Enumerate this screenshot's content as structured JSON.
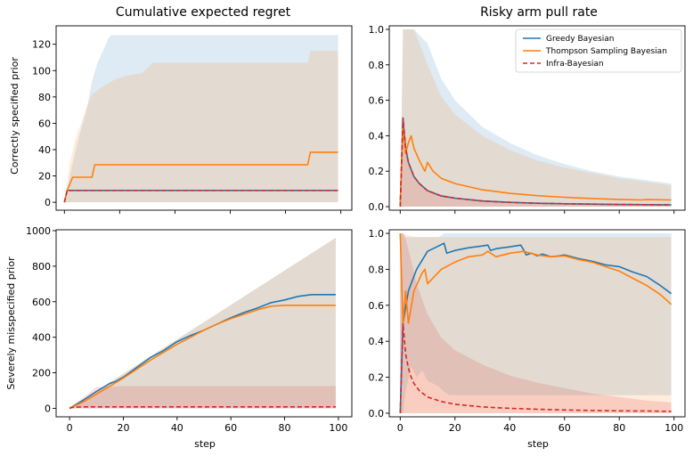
{
  "figure": {
    "col_titles": [
      "Cumulative expected regret",
      "Risky arm pull rate"
    ],
    "row_labels": [
      "Correctly specified prior",
      "Severely misspecified prior"
    ],
    "xlabel": "step"
  },
  "legend": {
    "placement": "top-right",
    "entries": [
      {
        "label": "Greedy Bayesian",
        "color": "#1f77b4",
        "style": "solid"
      },
      {
        "label": "Thompson Sampling Bayesian",
        "color": "#ff7f0e",
        "style": "solid"
      },
      {
        "label": "Infra-Bayesian",
        "color": "#d62728",
        "style": "dashed"
      }
    ]
  },
  "colors": {
    "greedy": "#1f77b4",
    "thompson": "#ff7f0e",
    "infra": "#d62728"
  },
  "chart_data": [
    {
      "type": "line",
      "panel": "top-left",
      "xlim": [
        -3,
        104
      ],
      "ylim": [
        -6,
        134
      ],
      "xticks": [
        0,
        20,
        40,
        60,
        80,
        100
      ],
      "yticks": [
        0,
        20,
        40,
        60,
        80,
        100,
        120
      ],
      "show_xtick_labels": false,
      "bands": [
        {
          "series": "greedy",
          "x": [
            0,
            3,
            5,
            8,
            10,
            12,
            14,
            16,
            17,
            99
          ],
          "lower": [
            0,
            0,
            0,
            0,
            0,
            0,
            0,
            0,
            0,
            0
          ],
          "upper": [
            0,
            30,
            48,
            70,
            92,
            106,
            115,
            125,
            127,
            127
          ]
        },
        {
          "series": "thompson",
          "x": [
            0,
            2,
            4,
            8,
            10,
            14,
            18,
            22,
            28,
            32,
            40,
            50,
            60,
            70,
            80,
            88,
            89,
            99
          ],
          "lower": [
            0,
            0,
            0,
            0,
            0,
            0,
            0,
            0,
            0,
            0,
            0,
            0,
            0,
            0,
            0,
            0,
            0,
            0
          ],
          "upper": [
            0,
            30,
            48,
            72,
            82,
            88,
            93,
            96,
            98,
            106,
            106,
            106,
            106,
            106,
            106,
            106,
            115,
            115
          ]
        },
        {
          "series": "infra",
          "x": [
            0,
            99
          ],
          "lower": [
            9,
            9
          ],
          "upper": [
            9,
            9
          ]
        }
      ],
      "series": [
        {
          "key": "greedy",
          "x": [
            0,
            1,
            99
          ],
          "values": [
            0,
            9,
            9
          ]
        },
        {
          "key": "thompson",
          "x": [
            0,
            1,
            3,
            10,
            11,
            88,
            89,
            99
          ],
          "values": [
            0,
            9,
            19,
            19,
            28.5,
            28.5,
            38,
            38
          ]
        },
        {
          "key": "infra",
          "x": [
            0,
            1,
            99
          ],
          "values": [
            0,
            9,
            9
          ]
        }
      ]
    },
    {
      "type": "line",
      "panel": "top-right",
      "xlim": [
        -4,
        104
      ],
      "ylim": [
        -0.02,
        1.02
      ],
      "xticks": [
        0,
        20,
        40,
        60,
        80,
        100
      ],
      "yticks": [
        0.0,
        0.2,
        0.4,
        0.6,
        0.8,
        1.0
      ],
      "show_xtick_labels": false,
      "bands": [
        {
          "series": "greedy",
          "x": [
            0,
            1,
            2,
            5,
            10,
            15,
            20,
            30,
            40,
            50,
            60,
            70,
            80,
            90,
            99
          ],
          "lower": [
            0,
            0,
            0,
            0,
            0,
            0,
            0,
            0,
            0,
            0,
            0,
            0,
            0,
            0,
            0
          ],
          "upper": [
            0,
            1.0,
            1.0,
            1.0,
            0.92,
            0.72,
            0.6,
            0.45,
            0.36,
            0.29,
            0.24,
            0.2,
            0.17,
            0.15,
            0.13
          ]
        },
        {
          "series": "thompson",
          "x": [
            0,
            1,
            5,
            10,
            15,
            20,
            30,
            40,
            50,
            60,
            70,
            80,
            90,
            99
          ],
          "lower": [
            0,
            0,
            0,
            0,
            0,
            0,
            0,
            0,
            0,
            0,
            0,
            0,
            0,
            0
          ],
          "upper": [
            0,
            1.0,
            1.0,
            0.8,
            0.62,
            0.52,
            0.4,
            0.32,
            0.26,
            0.22,
            0.19,
            0.16,
            0.14,
            0.12
          ]
        },
        {
          "series": "infra",
          "x": [
            0,
            1,
            2,
            5,
            10,
            20,
            40,
            99
          ],
          "lower": [
            0,
            0,
            0,
            0,
            0,
            0,
            0,
            0
          ],
          "upper": [
            0,
            0.5,
            0.32,
            0.16,
            0.09,
            0.05,
            0.025,
            0.012
          ]
        }
      ],
      "series": [
        {
          "key": "greedy",
          "x": [
            0,
            1,
            2,
            3,
            5,
            7,
            10,
            15,
            20,
            30,
            40,
            50,
            60,
            70,
            80,
            90,
            99
          ],
          "values": [
            0,
            0.5,
            0.33,
            0.25,
            0.17,
            0.13,
            0.09,
            0.06,
            0.048,
            0.032,
            0.024,
            0.019,
            0.016,
            0.014,
            0.012,
            0.011,
            0.01
          ]
        },
        {
          "key": "thompson",
          "x": [
            0,
            1,
            2,
            3,
            4,
            5,
            7,
            9,
            10,
            12,
            15,
            20,
            30,
            40,
            50,
            60,
            70,
            80,
            88,
            90,
            99
          ],
          "values": [
            0,
            0.45,
            0.3,
            0.36,
            0.4,
            0.33,
            0.26,
            0.2,
            0.25,
            0.2,
            0.16,
            0.13,
            0.095,
            0.075,
            0.062,
            0.053,
            0.046,
            0.041,
            0.038,
            0.04,
            0.038
          ]
        },
        {
          "key": "infra",
          "x": [
            0,
            1,
            2,
            3,
            5,
            7,
            10,
            15,
            20,
            30,
            40,
            50,
            60,
            70,
            80,
            90,
            99
          ],
          "values": [
            0,
            0.5,
            0.33,
            0.25,
            0.17,
            0.13,
            0.09,
            0.06,
            0.048,
            0.032,
            0.024,
            0.019,
            0.016,
            0.014,
            0.012,
            0.011,
            0.01
          ]
        }
      ]
    },
    {
      "type": "line",
      "panel": "bottom-left",
      "xlim": [
        -5,
        105
      ],
      "ylim": [
        -48,
        1005
      ],
      "xticks": [
        0,
        20,
        40,
        60,
        80,
        100
      ],
      "yticks": [
        0,
        200,
        400,
        600,
        800,
        1000
      ],
      "show_xtick_labels": true,
      "bands": [
        {
          "series": "greedy",
          "x": [
            0,
            99
          ],
          "lower": [
            0,
            0
          ],
          "upper": [
            0,
            960
          ]
        },
        {
          "series": "thompson",
          "x": [
            0,
            10,
            99
          ],
          "lower": [
            0,
            0,
            0
          ],
          "upper": [
            0,
            100,
            960
          ]
        },
        {
          "series": "infra",
          "x": [
            0,
            10,
            20,
            99
          ],
          "lower": [
            0,
            0,
            0,
            0
          ],
          "upper": [
            0,
            120,
            125,
            125
          ]
        }
      ],
      "series": [
        {
          "key": "greedy",
          "x": [
            0,
            5,
            10,
            15,
            17,
            20,
            25,
            30,
            35,
            40,
            45,
            50,
            55,
            60,
            65,
            70,
            75,
            80,
            85,
            90,
            99
          ],
          "values": [
            0,
            45,
            95,
            140,
            150,
            175,
            230,
            285,
            325,
            375,
            410,
            440,
            475,
            510,
            540,
            565,
            595,
            610,
            630,
            640,
            640
          ]
        },
        {
          "key": "thompson",
          "x": [
            0,
            5,
            10,
            15,
            20,
            25,
            30,
            35,
            40,
            45,
            50,
            55,
            60,
            65,
            70,
            75,
            80,
            85,
            90,
            99
          ],
          "values": [
            0,
            35,
            80,
            125,
            170,
            220,
            270,
            315,
            360,
            400,
            440,
            475,
            505,
            530,
            555,
            575,
            580,
            580,
            580,
            580
          ]
        },
        {
          "key": "infra",
          "x": [
            0,
            1,
            5,
            99
          ],
          "values": [
            0,
            5,
            8,
            8
          ]
        }
      ]
    },
    {
      "type": "line",
      "panel": "bottom-right",
      "xlim": [
        -4,
        104
      ],
      "ylim": [
        -0.02,
        1.02
      ],
      "xticks": [
        0,
        20,
        40,
        60,
        80,
        100
      ],
      "yticks": [
        0.0,
        0.2,
        0.4,
        0.6,
        0.8,
        1.0
      ],
      "show_xtick_labels": true,
      "bands": [
        {
          "series": "greedy",
          "x": [
            0,
            1,
            2,
            4,
            6,
            8,
            10,
            14,
            16,
            18,
            99
          ],
          "lower": [
            0,
            0,
            0.12,
            0.26,
            0.2,
            0.24,
            0.18,
            0.15,
            0.12,
            0.1,
            0.1
          ],
          "upper": [
            1.0,
            1.0,
            0.98,
            0.98,
            0.98,
            0.98,
            0.98,
            0.98,
            1.0,
            1.0,
            1.0
          ]
        },
        {
          "series": "thompson",
          "x": [
            0,
            1,
            5,
            10,
            20,
            30,
            40,
            50,
            60,
            70,
            80,
            90,
            99
          ],
          "lower": [
            0,
            0,
            0,
            0,
            0,
            0,
            0,
            0,
            0,
            0,
            0,
            0,
            0
          ],
          "upper": [
            1.0,
            1.0,
            0.98,
            0.98,
            0.98,
            0.98,
            0.98,
            0.98,
            0.98,
            0.98,
            0.98,
            0.98,
            0.98
          ]
        },
        {
          "series": "infra",
          "x": [
            0,
            1,
            2,
            4,
            6,
            10,
            15,
            20,
            30,
            40,
            50,
            60,
            70,
            80,
            90,
            99
          ],
          "lower": [
            0,
            0,
            0,
            0,
            0,
            0,
            0,
            0,
            0,
            0,
            0,
            0,
            0,
            0,
            0,
            0
          ],
          "upper": [
            1.0,
            1.0,
            0.97,
            0.85,
            0.72,
            0.55,
            0.42,
            0.35,
            0.27,
            0.21,
            0.17,
            0.14,
            0.11,
            0.09,
            0.07,
            0.06
          ]
        }
      ],
      "series": [
        {
          "key": "greedy",
          "x": [
            0,
            1,
            3,
            6,
            10,
            14,
            16,
            17,
            20,
            25,
            30,
            32,
            33,
            35,
            40,
            44,
            45,
            46,
            48,
            50,
            52,
            55,
            58,
            60,
            65,
            70,
            75,
            80,
            85,
            90,
            95,
            99
          ],
          "values": [
            0,
            0.5,
            0.68,
            0.8,
            0.9,
            0.93,
            0.945,
            0.89,
            0.905,
            0.92,
            0.93,
            0.935,
            0.905,
            0.915,
            0.925,
            0.935,
            0.91,
            0.88,
            0.89,
            0.875,
            0.885,
            0.87,
            0.875,
            0.88,
            0.86,
            0.845,
            0.825,
            0.815,
            0.785,
            0.76,
            0.71,
            0.665
          ]
        },
        {
          "key": "thompson",
          "x": [
            0,
            1,
            2,
            3,
            5,
            8,
            9,
            10,
            15,
            20,
            25,
            30,
            32,
            35,
            40,
            45,
            50,
            55,
            60,
            65,
            70,
            75,
            80,
            85,
            90,
            95,
            99
          ],
          "values": [
            1.0,
            0.5,
            0.68,
            0.5,
            0.68,
            0.78,
            0.8,
            0.72,
            0.8,
            0.84,
            0.87,
            0.88,
            0.9,
            0.87,
            0.89,
            0.9,
            0.88,
            0.87,
            0.875,
            0.855,
            0.84,
            0.815,
            0.79,
            0.75,
            0.71,
            0.66,
            0.605
          ]
        },
        {
          "key": "infra",
          "x": [
            0,
            1,
            2,
            3,
            4,
            5,
            7,
            10,
            15,
            20,
            30,
            40,
            50,
            60,
            70,
            80,
            90,
            99
          ],
          "values": [
            0,
            0.5,
            0.33,
            0.25,
            0.2,
            0.165,
            0.125,
            0.09,
            0.065,
            0.05,
            0.035,
            0.027,
            0.022,
            0.018,
            0.015,
            0.013,
            0.012,
            0.01
          ]
        }
      ]
    }
  ]
}
